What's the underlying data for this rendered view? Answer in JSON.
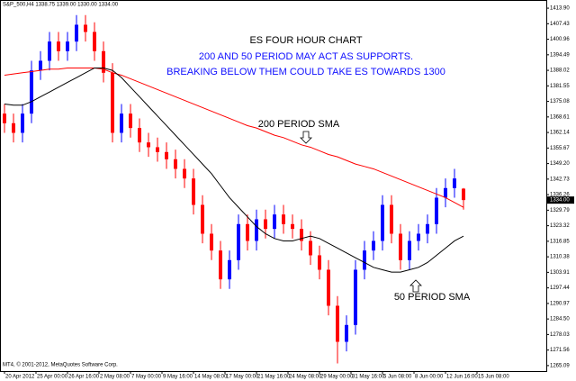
{
  "chart_data": {
    "type": "candlestick",
    "header": "S&P_500,H4 1338.75 1339.00 1330.00 1334.00",
    "title": "ES FOUR HOUR CHART",
    "annotations": [
      "200 AND 50 PERIOD MAY ACT AS SUPPORTS.",
      "BREAKING BELOW THEM COULD TAKE ES TOWARDS 1300"
    ],
    "footer": "MT4, © 2001-2012, MetaQuotes Software Corp.",
    "up_color": "#0000ff",
    "down_color": "#ff0000",
    "open": [
      1370,
      1366,
      1362,
      1370,
      1388,
      1392,
      1400,
      1396,
      1400,
      1407,
      1404,
      1396,
      1387,
      1362,
      1370,
      1364,
      1358,
      1356,
      1354,
      1351,
      1347,
      1343,
      1332,
      1320,
      1313,
      1301,
      1309,
      1324,
      1317,
      1326,
      1322,
      1328,
      1324,
      1322,
      1317,
      1311,
      1305,
      1290,
      1275,
      1282,
      1305,
      1313,
      1317,
      1332,
      1320,
      1309,
      1317,
      1320,
      1324,
      1335,
      1339,
      1338.75
    ],
    "high": [
      1374,
      1370,
      1374,
      1392,
      1396,
      1404,
      1404,
      1404,
      1411,
      1411,
      1408,
      1400,
      1391,
      1374,
      1374,
      1368,
      1362,
      1360,
      1358,
      1355,
      1351,
      1347,
      1336,
      1324,
      1317,
      1313,
      1328,
      1328,
      1330,
      1330,
      1332,
      1332,
      1328,
      1326,
      1321,
      1315,
      1309,
      1294,
      1286,
      1309,
      1317,
      1321,
      1336,
      1336,
      1324,
      1321,
      1324,
      1328,
      1339,
      1343,
      1347,
      1339
    ],
    "low": [
      1362,
      1358,
      1358,
      1366,
      1384,
      1388,
      1392,
      1392,
      1396,
      1400,
      1392,
      1383,
      1358,
      1358,
      1360,
      1354,
      1352,
      1350,
      1347,
      1343,
      1339,
      1328,
      1316,
      1309,
      1297,
      1297,
      1305,
      1313,
      1313,
      1318,
      1318,
      1320,
      1318,
      1313,
      1307,
      1301,
      1286,
      1266,
      1271,
      1278,
      1301,
      1309,
      1313,
      1316,
      1305,
      1305,
      1313,
      1316,
      1320,
      1331,
      1335,
      1330
    ],
    "close": [
      1366,
      1362,
      1370,
      1388,
      1392,
      1400,
      1396,
      1400,
      1407,
      1404,
      1396,
      1387,
      1362,
      1370,
      1364,
      1358,
      1356,
      1354,
      1351,
      1347,
      1343,
      1332,
      1320,
      1313,
      1301,
      1309,
      1324,
      1317,
      1326,
      1322,
      1328,
      1324,
      1322,
      1317,
      1311,
      1305,
      1290,
      1275,
      1282,
      1305,
      1313,
      1317,
      1332,
      1320,
      1309,
      1317,
      1320,
      1324,
      1335,
      1339,
      1343,
      1334
    ],
    "series": [
      {
        "name": "200 PERIOD SMA",
        "color": "#ff0000",
        "values": [
          1386,
          1386.5,
          1387,
          1387.5,
          1388,
          1388.5,
          1388.5,
          1389,
          1389,
          1389,
          1389,
          1388.5,
          1387,
          1386,
          1384.5,
          1383,
          1381.5,
          1380,
          1378.5,
          1377,
          1375.5,
          1374,
          1372.5,
          1371,
          1369.5,
          1368,
          1366.5,
          1365,
          1364,
          1362.5,
          1361,
          1360,
          1358.5,
          1357,
          1356,
          1354.5,
          1353,
          1352,
          1350.5,
          1349,
          1348,
          1347,
          1345.5,
          1344,
          1342.5,
          1341,
          1339.5,
          1338,
          1336.5,
          1335,
          1333,
          1331
        ]
      },
      {
        "name": "50 PERIOD SMA",
        "color": "#000000",
        "values": [
          1374,
          1373.5,
          1373.5,
          1375,
          1377,
          1379,
          1381,
          1383,
          1385,
          1387,
          1389,
          1389,
          1388,
          1385,
          1381,
          1377,
          1373,
          1369,
          1365,
          1361,
          1357,
          1353,
          1349,
          1345,
          1340,
          1335,
          1331,
          1327,
          1323,
          1320,
          1318,
          1317,
          1317,
          1318,
          1319,
          1318,
          1316,
          1314,
          1312,
          1310,
          1308,
          1306,
          1305,
          1304,
          1304,
          1305,
          1306,
          1308,
          1311,
          1314,
          1317,
          1319
        ]
      }
    ],
    "last_price": {
      "value": 1334,
      "label": "1334.00"
    },
    "xlim": [
      -0.5,
      60.2
    ],
    "xticks": [
      {
        "value": 0,
        "label": "20 Apr 2012"
      },
      {
        "value": 3.5,
        "label": "25 Apr 00:00"
      },
      {
        "value": 7,
        "label": "26 Apr 16:00"
      },
      {
        "value": 10.5,
        "label": "2 May 08:00"
      },
      {
        "value": 14,
        "label": "7 May 00:00"
      },
      {
        "value": 17.5,
        "label": "9 May 16:00"
      },
      {
        "value": 21,
        "label": "14 May 08:00"
      },
      {
        "value": 24.5,
        "label": "17 May 00:00"
      },
      {
        "value": 28,
        "label": "21 May 16:00"
      },
      {
        "value": 31.5,
        "label": "24 May 08:00"
      },
      {
        "value": 35,
        "label": "29 May 00:00"
      },
      {
        "value": 38.5,
        "label": "31 May 16:00"
      },
      {
        "value": 42,
        "label": "5 Jun 08:00"
      },
      {
        "value": 45.5,
        "label": "8 Jun 00:00"
      },
      {
        "value": 49,
        "label": "12 Jun 16:00"
      },
      {
        "value": 52.5,
        "label": "15 Jun 08:00"
      }
    ],
    "ylim": [
      1262.8,
      1417.3
    ],
    "yticks": [
      {
        "value": 1413.9,
        "label": "1413.90"
      },
      1407.43,
      1400.96,
      1394.49,
      1388.02,
      1381.55,
      1375.08,
      1368.61,
      1362.14,
      1355.67,
      {
        "value": 1349.2,
        "label": "1349.20"
      },
      1342.73,
      1336.26,
      1329.79,
      1323.32,
      1316.85,
      1310.38,
      1303.91,
      1297.44,
      1290.97,
      {
        "value": 1284.5,
        "label": "1284.50"
      },
      1278.03,
      1271.56,
      1265.09
    ]
  }
}
